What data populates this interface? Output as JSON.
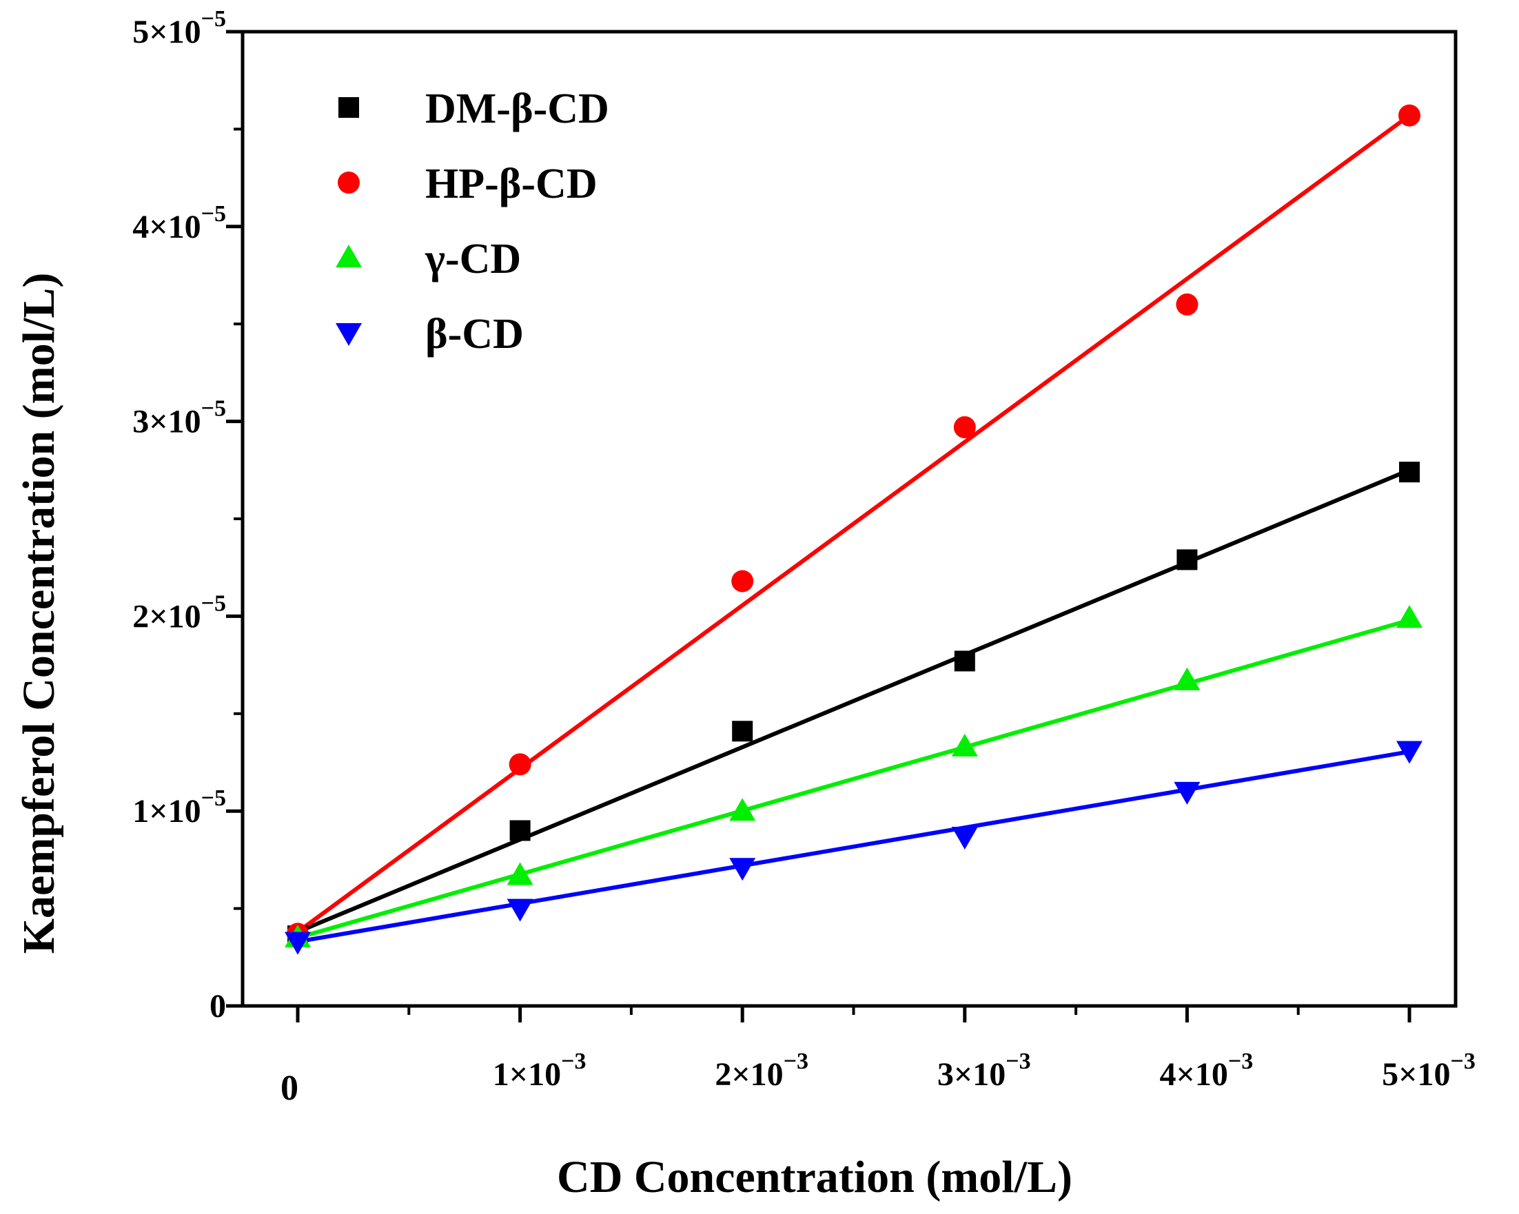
{
  "chart_data": {
    "type": "scatter",
    "title": "",
    "xlabel": "CD Concentration (mol/L)",
    "ylabel": "Kaempferol Concentration (mol/L)",
    "xlim": [
      -0.0003,
      0.0052
    ],
    "ylim": [
      0,
      5e-05
    ],
    "x_ticks": [
      {
        "value": 0,
        "label": "0"
      },
      {
        "value": 0.001,
        "label": "1×10",
        "exp": "−3"
      },
      {
        "value": 0.002,
        "label": "2×10",
        "exp": "−3"
      },
      {
        "value": 0.003,
        "label": "3×10",
        "exp": "−3"
      },
      {
        "value": 0.004,
        "label": "4×10",
        "exp": "−3"
      },
      {
        "value": 0.005,
        "label": "5×10",
        "exp": "−3"
      }
    ],
    "y_ticks": [
      {
        "value": 0,
        "label": "0",
        "exp": ""
      },
      {
        "value": 1e-05,
        "label": "1×10",
        "exp": "−5"
      },
      {
        "value": 2e-05,
        "label": "2×10",
        "exp": "−5"
      },
      {
        "value": 3e-05,
        "label": "3×10",
        "exp": "−5"
      },
      {
        "value": 4e-05,
        "label": "4×10",
        "exp": "−5"
      },
      {
        "value": 5e-05,
        "label": "5×10",
        "exp": "−5"
      }
    ],
    "legend_position": "top-left",
    "grid": false,
    "series": [
      {
        "name": "DM-β-CD",
        "marker": "square",
        "color": "#000000",
        "x": [
          0,
          0.001,
          0.002,
          0.003,
          0.004,
          0.005
        ],
        "y": [
          3.6e-06,
          9e-06,
          1.41e-05,
          1.77e-05,
          2.29e-05,
          2.74e-05
        ],
        "fit": {
          "intercept": 3.8e-06,
          "slope": 0.00474
        }
      },
      {
        "name": "HP-β-CD",
        "marker": "circle",
        "color": "#ff0000",
        "x": [
          0,
          0.001,
          0.002,
          0.003,
          0.004,
          0.005
        ],
        "y": [
          3.7e-06,
          1.24e-05,
          2.18e-05,
          2.97e-05,
          3.6e-05,
          4.57e-05
        ],
        "fit": {
          "intercept": 3.8e-06,
          "slope": 0.00838
        }
      },
      {
        "name": "γ-CD",
        "marker": "triangle-up",
        "color": "#00ee00",
        "x": [
          0,
          0.001,
          0.002,
          0.003,
          0.004,
          0.005
        ],
        "y": [
          3.5e-06,
          6.7e-06,
          1e-05,
          1.33e-05,
          1.67e-05,
          1.99e-05
        ],
        "fit": {
          "intercept": 3.5e-06,
          "slope": 0.00326
        }
      },
      {
        "name": "β-CD",
        "marker": "triangle-down",
        "color": "#0000ff",
        "x": [
          0,
          0.001,
          0.002,
          0.003,
          0.004,
          0.005
        ],
        "y": [
          3.3e-06,
          5e-06,
          7.1e-06,
          8.7e-06,
          1.1e-05,
          1.31e-05
        ],
        "fit": {
          "intercept": 3.3e-06,
          "slope": 0.00195
        }
      }
    ]
  }
}
